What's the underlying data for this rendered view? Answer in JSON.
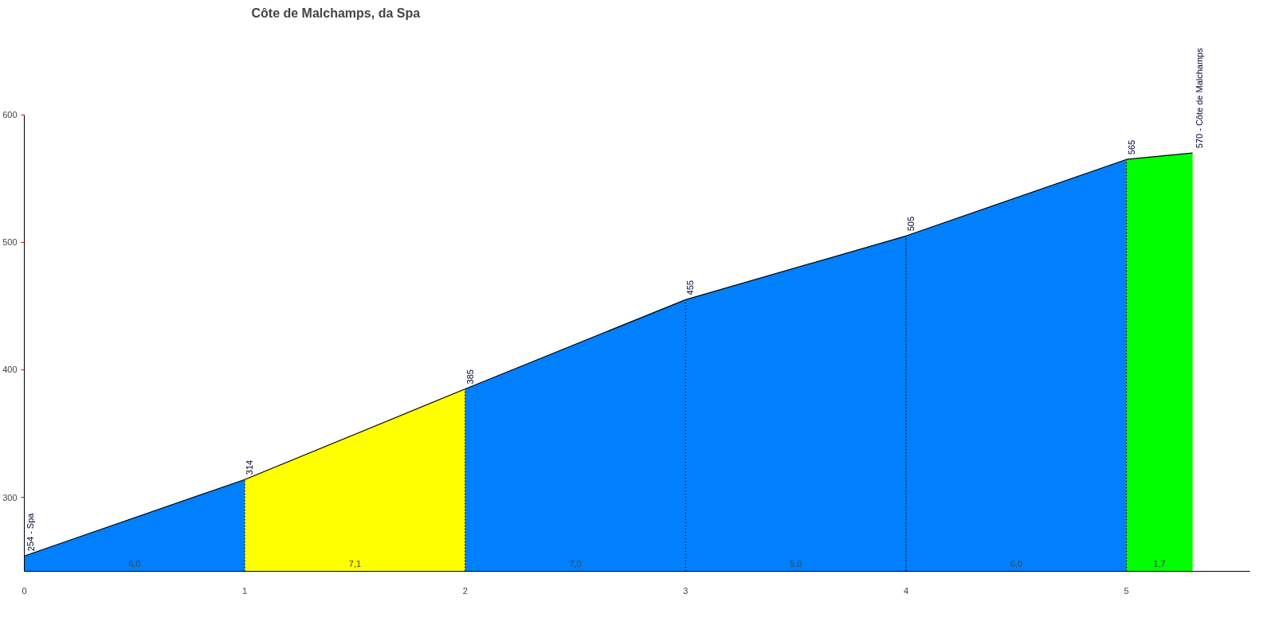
{
  "chart_data": {
    "type": "area",
    "title": "Côte de Malchamps, da Spa",
    "series": [
      {
        "x": [
          0,
          1
        ],
        "values": [
          254,
          314
        ],
        "color": "#0080ff",
        "value_labels": [
          "254 - Spa",
          null
        ]
      },
      {
        "x": [
          1,
          2
        ],
        "values": [
          314,
          385
        ],
        "color": "#ffff00",
        "value_labels": [
          "314",
          null
        ]
      },
      {
        "x": [
          2,
          3
        ],
        "values": [
          385,
          455
        ],
        "color": "#0080ff",
        "value_labels": [
          "385",
          null
        ]
      },
      {
        "x": [
          3,
          4
        ],
        "values": [
          455,
          505
        ],
        "color": "#0080ff",
        "value_labels": [
          "455",
          null
        ]
      },
      {
        "x": [
          4,
          5
        ],
        "values": [
          505,
          565
        ],
        "color": "#0080ff",
        "value_labels": [
          "505",
          null
        ]
      },
      {
        "x": [
          5,
          5.3
        ],
        "values": [
          565,
          570
        ],
        "color": "#00ff00",
        "value_labels": [
          "565",
          "570 - Côte de Malchamps"
        ]
      }
    ],
    "annotations": [
      "6,0",
      "7,1",
      "7,0",
      "5,0",
      "6,0",
      "1,7"
    ],
    "xlim": [
      0,
      5.56
    ],
    "ylim": [
      242,
      600
    ],
    "xticks": [
      0,
      1,
      2,
      3,
      4,
      5
    ],
    "yticks": [
      300,
      400,
      500,
      600
    ],
    "grid": "x"
  }
}
